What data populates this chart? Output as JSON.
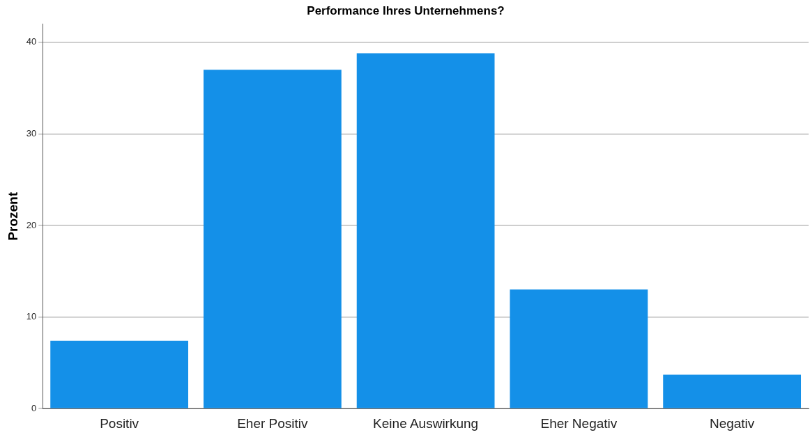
{
  "chart_data": {
    "type": "bar",
    "title": "Performance Ihres Unternehmens?",
    "ylabel": "Prozent",
    "categories": [
      "Positiv",
      "Eher Positiv",
      "Keine Auswirkung",
      "Eher Negativ",
      "Negativ"
    ],
    "values": [
      7.4,
      37.0,
      38.8,
      13.0,
      3.7
    ],
    "color": "#1490e8",
    "ylim": [
      0,
      42
    ],
    "yticks": [
      0,
      10,
      20,
      30,
      40
    ],
    "grid": "y",
    "legend": false
  }
}
